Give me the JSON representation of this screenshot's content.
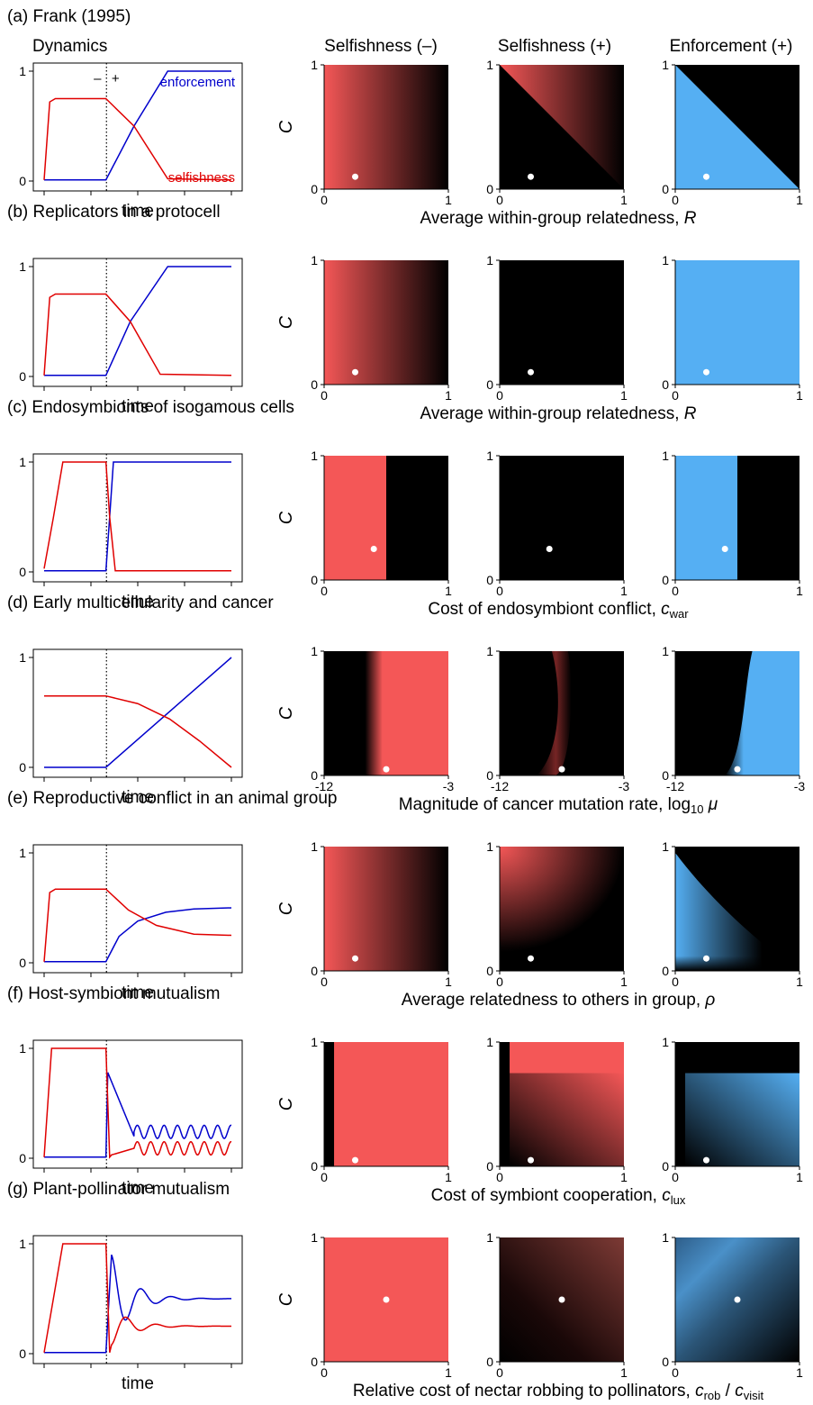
{
  "colors": {
    "selfish": "#f45757",
    "enforce": "#55aff3",
    "dyn_selfish": "#e00000",
    "dyn_enforce": "#0000cc",
    "bg": "#000000",
    "dot": "#ffffff"
  },
  "column_headers": [
    "Dynamics",
    "Selfishness (–)",
    "Selfishness (+)",
    "Enforcement (+)"
  ],
  "time_label": "time",
  "dyn_ticks": [
    "0",
    "1"
  ],
  "c_label": "C",
  "dynamics_annotations": {
    "minus": "–",
    "plus": "+",
    "enforcement": "enforcement",
    "selfishness": "selfishness"
  },
  "chart_data": [
    {
      "id": "a",
      "type": "heatmap",
      "title": "(a) Frank (1995)",
      "xlabel": "Average within-group relatedness, ",
      "xlabel_var": "R",
      "xlim": [
        0,
        1
      ],
      "ylim": [
        0,
        1
      ],
      "x_ticks": [
        "0",
        "1"
      ],
      "y_ticks": [
        "0",
        "1"
      ],
      "point": [
        0.25,
        0.1
      ],
      "dynamics": {
        "selfishness": [
          [
            0,
            0.01
          ],
          [
            0.03,
            0.72
          ],
          [
            0.06,
            0.75
          ],
          [
            0.33,
            0.75
          ],
          [
            0.48,
            0.5
          ],
          [
            0.66,
            0.02
          ],
          [
            1,
            0.01
          ]
        ],
        "enforcement": [
          [
            0,
            0.01
          ],
          [
            0.33,
            0.01
          ],
          [
            0.48,
            0.5
          ],
          [
            0.66,
            1.0
          ],
          [
            1,
            1.0
          ]
        ]
      }
    },
    {
      "id": "b",
      "type": "heatmap",
      "title": "(b) Replicators in a protocell",
      "xlabel": "Average within-group relatedness, ",
      "xlabel_var": "R",
      "xlim": [
        0,
        1
      ],
      "ylim": [
        0,
        1
      ],
      "x_ticks": [
        "0",
        "1"
      ],
      "y_ticks": [
        "0",
        "1"
      ],
      "point": [
        0.25,
        0.1
      ],
      "dynamics": {
        "selfishness": [
          [
            0,
            0.01
          ],
          [
            0.03,
            0.72
          ],
          [
            0.06,
            0.75
          ],
          [
            0.33,
            0.75
          ],
          [
            0.46,
            0.5
          ],
          [
            0.62,
            0.02
          ],
          [
            1,
            0.01
          ]
        ],
        "enforcement": [
          [
            0,
            0.01
          ],
          [
            0.33,
            0.01
          ],
          [
            0.46,
            0.5
          ],
          [
            0.66,
            1.0
          ],
          [
            1,
            1.0
          ]
        ]
      }
    },
    {
      "id": "c",
      "type": "heatmap",
      "title": "(c) Endosymbionts of isogamous cells",
      "xlabel": "Cost of endosymbiont conflict, ",
      "xlabel_var": "c",
      "xlabel_sub": "war",
      "xlim": [
        0,
        1
      ],
      "ylim": [
        0,
        1
      ],
      "x_ticks": [
        "0",
        "1"
      ],
      "y_ticks": [
        "0",
        "1"
      ],
      "point": [
        0.4,
        0.25
      ],
      "dynamics": {
        "selfishness": [
          [
            0,
            0.03
          ],
          [
            0.05,
            0.5
          ],
          [
            0.1,
            1.0
          ],
          [
            0.33,
            1.0
          ],
          [
            0.35,
            0.5
          ],
          [
            0.38,
            0.01
          ],
          [
            1,
            0.01
          ]
        ],
        "enforcement": [
          [
            0,
            0.01
          ],
          [
            0.33,
            0.01
          ],
          [
            0.35,
            0.5
          ],
          [
            0.37,
            1.0
          ],
          [
            1,
            1.0
          ]
        ]
      }
    },
    {
      "id": "d",
      "type": "heatmap",
      "title": "(d) Early multicellularity and cancer",
      "xlabel": "Magnitude of cancer mutation rate, log",
      "xlabel_sub": "10",
      "xlabel_var": " μ",
      "xlim": [
        -12,
        -3
      ],
      "ylim": [
        0,
        1
      ],
      "x_ticks": [
        "-12",
        "-3"
      ],
      "y_ticks": [
        "0",
        "1"
      ],
      "point": [
        -7.5,
        0.05
      ],
      "dynamics": {
        "selfishness": [
          [
            0,
            0.65
          ],
          [
            0.33,
            0.65
          ],
          [
            0.5,
            0.58
          ],
          [
            0.67,
            0.44
          ],
          [
            0.83,
            0.24
          ],
          [
            1,
            0.0
          ]
        ],
        "enforcement": [
          [
            0,
            0.0
          ],
          [
            0.33,
            0.0
          ],
          [
            1,
            1.0
          ]
        ]
      }
    },
    {
      "id": "e",
      "type": "heatmap",
      "title": "(e) Reproductive conflict in an animal group",
      "xlabel": "Average relatedness to others in group, ",
      "xlabel_var": "ρ",
      "xlim": [
        0,
        1
      ],
      "ylim": [
        0,
        1
      ],
      "x_ticks": [
        "0",
        "1"
      ],
      "y_ticks": [
        "0",
        "1"
      ],
      "point": [
        0.25,
        0.1
      ],
      "dynamics": {
        "selfishness": [
          [
            0,
            0.01
          ],
          [
            0.03,
            0.64
          ],
          [
            0.06,
            0.67
          ],
          [
            0.33,
            0.67
          ],
          [
            0.45,
            0.48
          ],
          [
            0.6,
            0.34
          ],
          [
            0.8,
            0.26
          ],
          [
            1,
            0.25
          ]
        ],
        "enforcement": [
          [
            0,
            0.01
          ],
          [
            0.33,
            0.01
          ],
          [
            0.4,
            0.24
          ],
          [
            0.5,
            0.38
          ],
          [
            0.65,
            0.46
          ],
          [
            0.8,
            0.49
          ],
          [
            1,
            0.5
          ]
        ]
      }
    },
    {
      "id": "f",
      "type": "heatmap",
      "title": "(f) Host-symbiont mutualism",
      "xlabel": "Cost of symbiont cooperation, ",
      "xlabel_var": "c",
      "xlabel_sub": "lux",
      "xlim": [
        0,
        1
      ],
      "ylim": [
        0,
        1
      ],
      "x_ticks": [
        "0",
        "1"
      ],
      "y_ticks": [
        "0",
        "1"
      ],
      "point": [
        0.25,
        0.05
      ],
      "dynamics": {
        "selfishness": [
          [
            0,
            0.01
          ],
          [
            0.04,
            1.0
          ],
          [
            0.33,
            1.0
          ],
          [
            0.35,
            0.01
          ]
        ],
        "enforcement": [
          [
            0,
            0.01
          ],
          [
            0.33,
            0.01
          ],
          [
            0.34,
            0.78
          ],
          [
            0.48,
            0.2
          ]
        ]
      }
    },
    {
      "id": "g",
      "type": "heatmap",
      "title": "(g) Plant-pollinator mutualism",
      "xlabel": "Relative cost of nectar robbing to pollinators, ",
      "xlabel_var": "c",
      "xlabel_sub": "rob",
      "xlabel_mid": " / ",
      "xlabel_var2": "c",
      "xlabel_sub2": "visit",
      "xlim": [
        0,
        1
      ],
      "ylim": [
        0,
        1
      ],
      "x_ticks": [
        "0",
        "1"
      ],
      "y_ticks": [
        "0",
        "1"
      ],
      "point": [
        0.5,
        0.5
      ],
      "dynamics": {
        "selfishness": [
          [
            0,
            0.01
          ],
          [
            0.1,
            1.0
          ],
          [
            0.33,
            1.0
          ],
          [
            0.35,
            0.01
          ]
        ],
        "enforcement": [
          [
            0,
            0.01
          ],
          [
            0.33,
            0.01
          ],
          [
            0.36,
            0.9
          ]
        ]
      }
    }
  ]
}
